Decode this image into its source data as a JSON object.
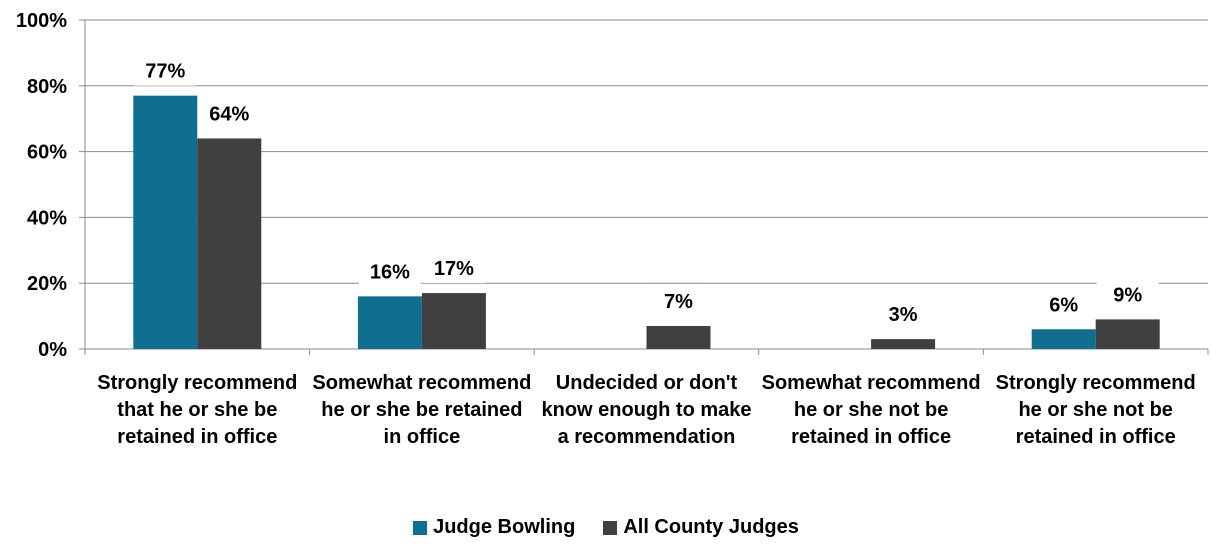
{
  "chart_data": {
    "type": "bar",
    "categories": [
      "Strongly recommend that he or she be retained in office",
      "Somewhat recommend he or she be retained in office",
      "Undecided or don't know enough to make a recommendation",
      "Somewhat recommend he or she not be retained in office",
      "Strongly recommend he or she not be retained in office"
    ],
    "series": [
      {
        "name": "Judge Bowling",
        "color": "#0e6f91",
        "values": [
          77,
          16,
          null,
          null,
          6
        ]
      },
      {
        "name": "All County Judges",
        "color": "#404040",
        "values": [
          64,
          17,
          7,
          3,
          9
        ]
      }
    ],
    "data_labels": [
      [
        "77%",
        "16%",
        "",
        "",
        "6%"
      ],
      [
        "64%",
        "17%",
        "7%",
        "3%",
        "9%"
      ]
    ],
    "ylim": [
      0,
      100
    ],
    "y_ticks": [
      "0%",
      "20%",
      "40%",
      "60%",
      "80%",
      "100%"
    ],
    "grid": true,
    "legend": "bottom",
    "xlabel": "",
    "ylabel": ""
  }
}
